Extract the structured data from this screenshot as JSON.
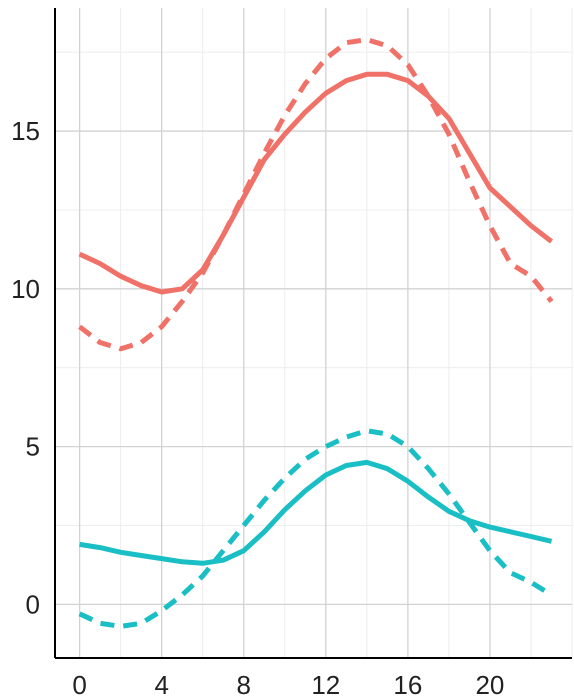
{
  "chart_data": {
    "type": "line",
    "title": "",
    "xlabel": "",
    "ylabel": "",
    "xlim": [
      -1.2,
      24.0
    ],
    "ylim": [
      -1.7,
      18.9
    ],
    "x_ticks": [
      0,
      4,
      8,
      12,
      16,
      20
    ],
    "y_ticks": [
      0,
      5,
      10,
      15
    ],
    "grid": true,
    "legend": "none",
    "x": [
      0,
      1,
      2,
      3,
      4,
      5,
      6,
      7,
      8,
      9,
      10,
      11,
      12,
      13,
      14,
      15,
      16,
      17,
      18,
      19,
      20,
      21,
      22,
      23
    ],
    "series": [
      {
        "color": "#F07168",
        "dash": "solid",
        "values": [
          11.1,
          10.8,
          10.4,
          10.1,
          9.9,
          10.0,
          10.6,
          11.7,
          12.9,
          14.1,
          14.9,
          15.6,
          16.2,
          16.6,
          16.8,
          16.8,
          16.6,
          16.1,
          15.4,
          14.3,
          13.2,
          12.6,
          12.0,
          11.5
        ]
      },
      {
        "color": "#F07168",
        "dash": "dashed",
        "values": [
          8.8,
          8.3,
          8.1,
          8.3,
          8.8,
          9.6,
          10.5,
          11.7,
          13.0,
          14.3,
          15.5,
          16.5,
          17.3,
          17.8,
          17.9,
          17.7,
          17.1,
          16.1,
          14.9,
          13.4,
          12.0,
          10.8,
          10.4,
          9.6
        ]
      },
      {
        "color": "#19BFC4",
        "dash": "solid",
        "values": [
          1.9,
          1.8,
          1.65,
          1.55,
          1.45,
          1.35,
          1.3,
          1.4,
          1.7,
          2.3,
          3.0,
          3.6,
          4.1,
          4.4,
          4.5,
          4.3,
          3.9,
          3.4,
          2.95,
          2.65,
          2.45,
          2.3,
          2.15,
          2.0
        ]
      },
      {
        "color": "#19BFC4",
        "dash": "dashed",
        "values": [
          -0.3,
          -0.6,
          -0.7,
          -0.6,
          -0.2,
          0.3,
          0.9,
          1.7,
          2.5,
          3.3,
          4.0,
          4.6,
          5.0,
          5.3,
          5.5,
          5.4,
          5.0,
          4.3,
          3.5,
          2.6,
          1.7,
          1.0,
          0.7,
          0.3
        ]
      }
    ]
  }
}
